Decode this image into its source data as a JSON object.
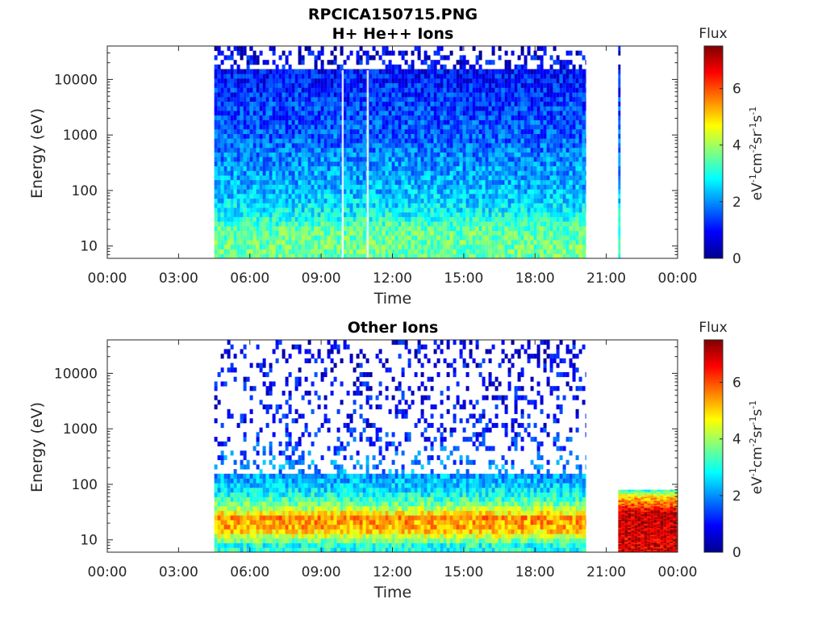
{
  "figure_title": "RPCICA150715.PNG",
  "chart_data": [
    {
      "type": "heatmap",
      "title": "H+ He++ Ions",
      "xlabel": "Time",
      "ylabel": "Energy (eV)",
      "x_ticks": [
        "00:00",
        "03:00",
        "06:00",
        "09:00",
        "12:00",
        "15:00",
        "18:00",
        "21:00",
        "00:00"
      ],
      "x_range_hours": [
        0,
        24
      ],
      "y_scale": "log",
      "y_ticks": [
        10,
        100,
        1000,
        10000
      ],
      "y_tick_labels": [
        "10",
        "100",
        "1000",
        "10000"
      ],
      "y_range": [
        6,
        40000
      ],
      "colorbar": {
        "label": "Flux",
        "unit": "eV-1cm-2sr-1s-1",
        "range": [
          0,
          7.5
        ],
        "ticks": [
          0,
          2,
          4,
          6
        ],
        "colormap": "jet"
      },
      "segments": [
        {
          "start_hour": 4.5,
          "end_hour": 20.15,
          "description": "continuous coverage"
        },
        {
          "start_hour": 21.5,
          "end_hour": 21.6,
          "description": "short burst"
        }
      ],
      "data_gaps_hours": [
        9.9,
        10.95
      ],
      "energy_profile": [
        {
          "energy_eV": 8,
          "flux": 3.6
        },
        {
          "energy_eV": 20,
          "flux": 3.5
        },
        {
          "energy_eV": 40,
          "flux": 2.8
        },
        {
          "energy_eV": 100,
          "flux": 2.3
        },
        {
          "energy_eV": 300,
          "flux": 2.0
        },
        {
          "energy_eV": 1000,
          "flux": 1.6
        },
        {
          "energy_eV": 5000,
          "flux": 1.3
        },
        {
          "energy_eV": 15000,
          "flux": 1.0
        },
        {
          "energy_eV": 35000,
          "flux": 0.6
        }
      ]
    },
    {
      "type": "heatmap",
      "title": "Other Ions",
      "xlabel": "Time",
      "ylabel": "Energy (eV)",
      "x_ticks": [
        "00:00",
        "03:00",
        "06:00",
        "09:00",
        "12:00",
        "15:00",
        "18:00",
        "21:00",
        "00:00"
      ],
      "x_range_hours": [
        0,
        24
      ],
      "y_scale": "log",
      "y_ticks": [
        10,
        100,
        1000,
        10000
      ],
      "y_tick_labels": [
        "10",
        "100",
        "1000",
        "10000"
      ],
      "y_range": [
        6,
        40000
      ],
      "colorbar": {
        "label": "Flux",
        "unit": "eV-1cm-2sr-1s-1",
        "range": [
          0,
          7.5
        ],
        "ticks": [
          0,
          2,
          4,
          6
        ],
        "colormap": "jet"
      },
      "segments": [
        {
          "start_hour": 4.5,
          "end_hour": 20.15,
          "description": "main interval"
        },
        {
          "start_hour": 21.5,
          "end_hour": 24.0,
          "description": "intense low-energy band"
        }
      ],
      "energy_profile": [
        {
          "energy_eV": 8,
          "flux": 3.0
        },
        {
          "energy_eV": 15,
          "flux": 5.2
        },
        {
          "energy_eV": 25,
          "flux": 5.5
        },
        {
          "energy_eV": 40,
          "flux": 3.8
        },
        {
          "energy_eV": 80,
          "flux": 2.6
        },
        {
          "energy_eV": 130,
          "flux": 2.2
        },
        {
          "energy_eV": 1000,
          "flux": 1.0
        },
        {
          "energy_eV": 30000,
          "flux": 0.8
        }
      ],
      "late_segment_profile": [
        {
          "energy_eV": 8,
          "flux": 6.8
        },
        {
          "energy_eV": 30,
          "flux": 7.0
        },
        {
          "energy_eV": 60,
          "flux": 5.0
        },
        {
          "energy_eV": 80,
          "flux": 3.0
        }
      ]
    }
  ]
}
